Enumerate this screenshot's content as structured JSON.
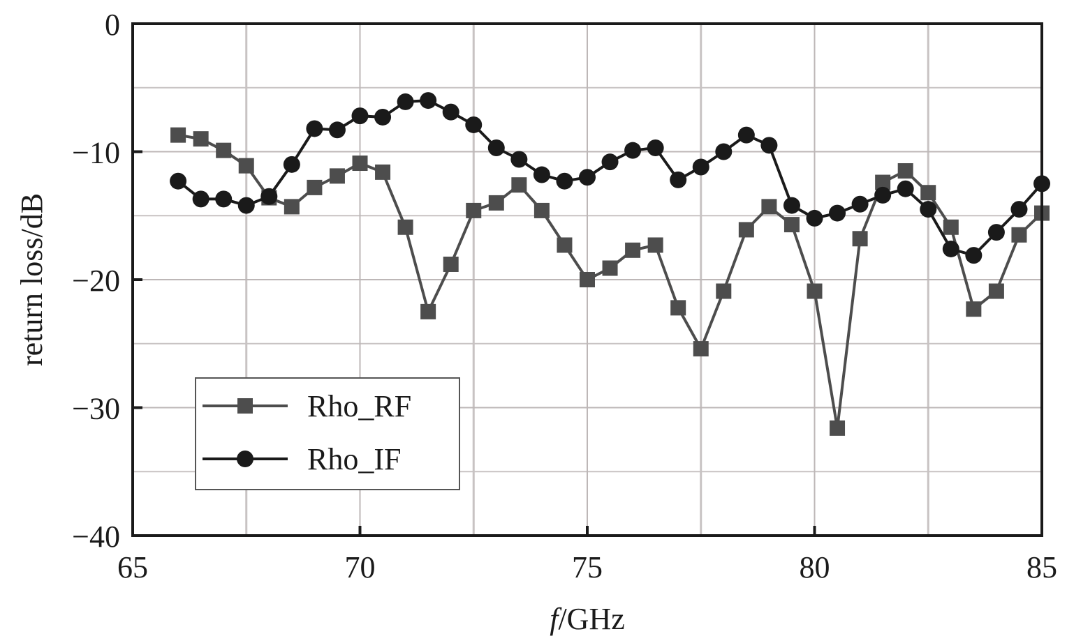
{
  "chart_data": {
    "type": "line",
    "xlabel_italic": "f",
    "xlabel_rest": "/GHz",
    "ylabel": "return loss/dB",
    "xlim": [
      65,
      85
    ],
    "ylim": [
      -40,
      0
    ],
    "xticks": [
      65,
      70,
      75,
      80,
      85
    ],
    "yticks": [
      0,
      -10,
      -20,
      -30,
      -40
    ],
    "ytick_labels": [
      "0",
      "−10",
      "−20",
      "−30",
      "−40"
    ],
    "grid": true,
    "legend_position": "bottom-left",
    "series": [
      {
        "name": "Rho_RF",
        "marker": "square",
        "color": "#4d4d4d",
        "x": [
          66,
          66.5,
          67,
          67.5,
          68,
          68.5,
          69,
          69.5,
          70,
          70.5,
          71,
          71.5,
          72,
          72.5,
          73,
          73.5,
          74,
          74.5,
          75,
          75.5,
          76,
          76.5,
          77,
          77.5,
          78,
          78.5,
          79,
          79.5,
          80,
          80.5,
          81,
          81.5,
          82,
          82.5,
          83,
          83.5,
          84,
          84.5,
          85
        ],
        "y": [
          -8.7,
          -9.0,
          -9.9,
          -11.1,
          -13.6,
          -14.3,
          -12.8,
          -11.9,
          -10.9,
          -11.6,
          -15.9,
          -22.5,
          -18.8,
          -14.6,
          -14.0,
          -12.6,
          -14.6,
          -17.3,
          -20.0,
          -19.1,
          -17.7,
          -17.3,
          -22.2,
          -25.4,
          -20.9,
          -16.1,
          -14.3,
          -15.7,
          -20.9,
          -31.6,
          -16.8,
          -12.4,
          -11.5,
          -13.2,
          -15.9,
          -22.3,
          -20.9,
          -16.5,
          -14.8
        ]
      },
      {
        "name": "Rho_IF",
        "marker": "circle",
        "color": "#1a1a1a",
        "x": [
          66,
          66.5,
          67,
          67.5,
          68,
          68.5,
          69,
          69.5,
          70,
          70.5,
          71,
          71.5,
          72,
          72.5,
          73,
          73.5,
          74,
          74.5,
          75,
          75.5,
          76,
          76.5,
          77,
          77.5,
          78,
          78.5,
          79,
          79.5,
          80,
          80.5,
          81,
          81.5,
          82,
          82.5,
          83,
          83.5,
          84,
          84.5,
          85
        ],
        "y": [
          -12.3,
          -13.7,
          -13.7,
          -14.2,
          -13.5,
          -11.0,
          -8.2,
          -8.3,
          -7.2,
          -7.3,
          -6.1,
          -6.0,
          -6.9,
          -7.9,
          -9.7,
          -10.6,
          -11.8,
          -12.3,
          -12.0,
          -10.8,
          -9.9,
          -9.7,
          -12.2,
          -11.2,
          -10.0,
          -8.7,
          -9.5,
          -14.2,
          -15.2,
          -14.8,
          -14.1,
          -13.4,
          -12.9,
          -14.5,
          -17.6,
          -18.1,
          -16.3,
          -14.5,
          -12.5
        ]
      }
    ]
  }
}
